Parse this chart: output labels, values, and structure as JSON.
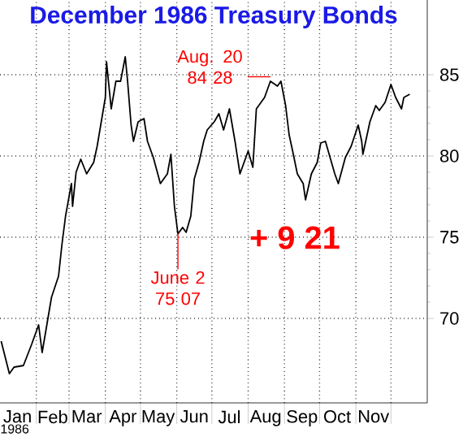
{
  "chart_data": {
    "type": "line",
    "title": "December 1986 Treasury Bonds",
    "xlabel": "1986",
    "color": "#000000",
    "marker": "none",
    "grid": true,
    "x": [
      "1986-01-02",
      "1986-01-09",
      "1986-01-13",
      "1986-01-21",
      "1986-01-28",
      "1986-02-03",
      "1986-02-06",
      "1986-02-10",
      "1986-02-14",
      "1986-02-20",
      "1986-02-23",
      "1986-02-26",
      "1986-03-03",
      "1986-03-04",
      "1986-03-07",
      "1986-03-11",
      "1986-03-16",
      "1986-03-22",
      "1986-03-25",
      "1986-04-01",
      "1986-04-02",
      "1986-04-06",
      "1986-04-10",
      "1986-04-14",
      "1986-04-18",
      "1986-04-20",
      "1986-04-23",
      "1986-04-25",
      "1986-04-29",
      "1986-05-04",
      "1986-05-07",
      "1986-05-12",
      "1986-05-18",
      "1986-05-21",
      "1986-05-24",
      "1986-05-27",
      "1986-05-30",
      "1986-06-02",
      "1986-06-06",
      "1986-06-09",
      "1986-06-13",
      "1986-06-16",
      "1986-06-20",
      "1986-06-24",
      "1986-06-27",
      "1986-07-03",
      "1986-07-07",
      "1986-07-11",
      "1986-07-16",
      "1986-07-21",
      "1986-07-22",
      "1986-07-25",
      "1986-08-01",
      "1986-08-05",
      "1986-08-08",
      "1986-08-15",
      "1986-08-20",
      "1986-08-26",
      "1986-08-29",
      "1986-09-02",
      "1986-09-05",
      "1986-09-08",
      "1986-09-12",
      "1986-09-17",
      "1986-09-19",
      "1986-09-24",
      "1986-09-29",
      "1986-10-02",
      "1986-10-06",
      "1986-10-10",
      "1986-10-14",
      "1986-10-17",
      "1986-10-23",
      "1986-10-28",
      "1986-11-03",
      "1986-11-06",
      "1986-11-07",
      "1986-11-13",
      "1986-11-18",
      "1986-11-21",
      "1986-11-26",
      "1986-12-01",
      "1986-12-05",
      "1986-12-10",
      "1986-12-12",
      "1986-12-17"
    ],
    "values": [
      68.6,
      66.6,
      67.0,
      67.1,
      68.4,
      69.6,
      67.9,
      69.6,
      71.3,
      72.6,
      74.6,
      76.3,
      78.3,
      76.9,
      79.0,
      79.8,
      78.9,
      79.6,
      80.6,
      83.6,
      85.8,
      82.9,
      84.6,
      84.6,
      86.1,
      84.6,
      81.9,
      80.9,
      82.1,
      82.3,
      80.9,
      79.9,
      78.3,
      78.6,
      78.9,
      80.1,
      76.9,
      75.2,
      75.6,
      75.3,
      76.3,
      78.6,
      79.6,
      80.9,
      81.6,
      82.1,
      82.6,
      81.6,
      82.9,
      80.8,
      80.3,
      78.9,
      80.3,
      79.3,
      82.9,
      83.6,
      84.6,
      84.3,
      84.6,
      83.1,
      81.3,
      80.3,
      78.9,
      78.3,
      77.3,
      78.9,
      79.6,
      80.8,
      80.9,
      79.9,
      78.9,
      78.3,
      79.9,
      80.6,
      81.9,
      80.9,
      80.1,
      82.1,
      83.1,
      82.8,
      83.3,
      84.4,
      83.6,
      82.9,
      83.6,
      83.8
    ],
    "xlim": [
      "1986-01-01",
      "1987-01-01"
    ],
    "xticks": [
      {
        "value": "1986-02-01",
        "label": null
      },
      {
        "value": "1986-03-01",
        "label": null
      },
      {
        "value": "1986-04-01",
        "label": null
      },
      {
        "value": "1986-05-01",
        "label": null
      },
      {
        "value": "1986-06-01",
        "label": null
      },
      {
        "value": "1986-07-01",
        "label": null
      },
      {
        "value": "1986-08-01",
        "label": null
      },
      {
        "value": "1986-09-01",
        "label": null
      },
      {
        "value": "1986-10-01",
        "label": null
      },
      {
        "value": "1986-11-01",
        "label": null
      },
      {
        "value": "1986-12-01",
        "label": null
      },
      {
        "value": "1986-01-16",
        "label": "Jan"
      },
      {
        "value": "1986-02-15",
        "label": "Feb"
      },
      {
        "value": "1986-03-16",
        "label": "Mar"
      },
      {
        "value": "1986-04-16",
        "label": "Apr"
      },
      {
        "value": "1986-05-16",
        "label": "May"
      },
      {
        "value": "1986-06-16",
        "label": "Jun"
      },
      {
        "value": "1986-07-16",
        "label": "Jul"
      },
      {
        "value": "1986-08-16",
        "label": "Aug"
      },
      {
        "value": "1986-09-16",
        "label": "Sep"
      },
      {
        "value": "1986-10-16",
        "label": "Oct"
      },
      {
        "value": "1986-11-16",
        "label": "Nov"
      }
    ],
    "ylim": [
      64.8,
      89.6
    ],
    "yticks": [
      70,
      75,
      80,
      85
    ],
    "annotations": [
      {
        "text": "Aug. 20 84 28",
        "x": "1986-08-20",
        "y": 84.875
      },
      {
        "text": "June 2 75 07",
        "x": "1986-06-02",
        "y": 75.22
      },
      "+ 9 21"
    ]
  }
}
